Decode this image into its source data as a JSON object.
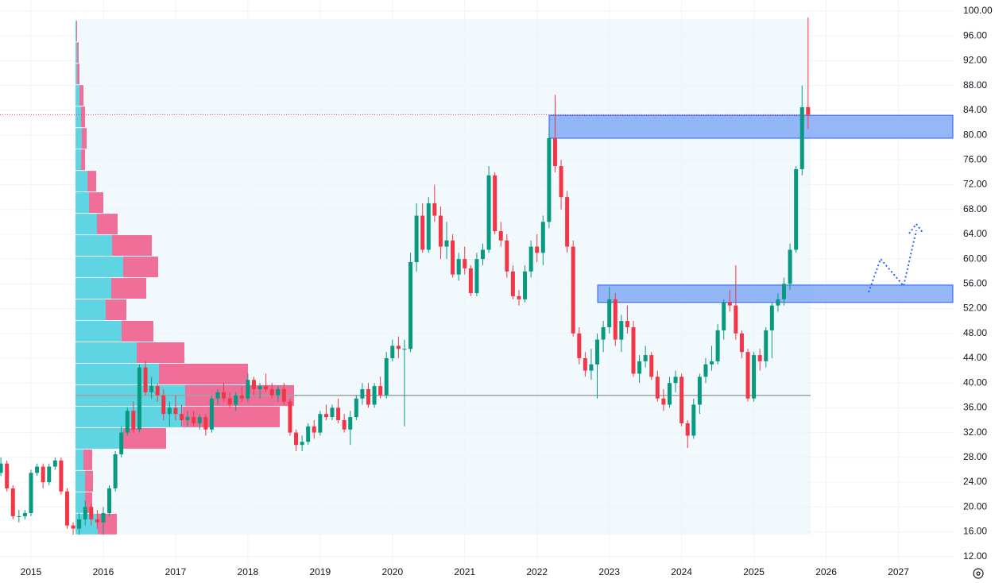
{
  "chart_data": {
    "type": "candlestick",
    "categories": [
      null,
      null,
      null,
      null,
      null,
      "2015",
      null,
      null,
      null,
      null,
      null,
      null,
      null,
      null,
      null,
      null,
      null,
      "2016",
      null,
      null,
      null,
      null,
      null,
      null,
      null,
      null,
      null,
      null,
      null,
      "2017",
      null,
      null,
      null,
      null,
      null,
      null,
      null,
      null,
      null,
      null,
      null,
      "2018",
      null,
      null,
      null,
      null,
      null,
      null,
      null,
      null,
      null,
      null,
      null,
      "2019",
      null,
      null,
      null,
      null,
      null,
      null,
      null,
      null,
      null,
      null,
      null,
      "2020",
      null,
      null,
      null,
      null,
      null,
      null,
      null,
      null,
      null,
      null,
      null,
      "2021",
      null,
      null,
      null,
      null,
      null,
      null,
      null,
      null,
      null,
      null,
      null,
      "2022",
      null,
      null,
      null,
      null,
      null,
      null,
      null,
      null,
      null,
      null,
      null,
      "2023",
      null,
      null,
      null,
      null,
      null,
      null,
      null,
      null,
      null,
      null,
      null,
      "2024",
      null,
      null,
      null,
      null,
      null,
      null,
      null,
      null,
      null,
      null,
      null,
      "2025",
      null,
      null,
      null,
      null,
      null,
      null,
      null,
      null,
      null,
      null,
      null,
      "2026",
      null,
      null,
      null,
      null,
      null,
      null,
      null,
      null,
      null,
      null,
      null,
      "2027",
      null,
      null,
      null,
      null,
      null,
      null,
      null,
      null,
      null
    ],
    "ohlc": [
      [
        25.5,
        28,
        25,
        27
      ],
      [
        27,
        27.5,
        22.5,
        23
      ],
      [
        23,
        23.5,
        18,
        18.5
      ],
      [
        18.5,
        19.5,
        17.5,
        18.5
      ],
      [
        18.5,
        19.5,
        18,
        19
      ],
      [
        19,
        26,
        18.5,
        25.5
      ],
      [
        25.5,
        27,
        25,
        26.5
      ],
      [
        26.5,
        27,
        23,
        24
      ],
      [
        24,
        27,
        23.5,
        26.5
      ],
      [
        26.5,
        28,
        26,
        27.5
      ],
      [
        27.5,
        28,
        22,
        22.5
      ],
      [
        22.5,
        23,
        16.5,
        17
      ],
      [
        17,
        17.5,
        15.5,
        16.5
      ],
      [
        16.5,
        19,
        15.5,
        18
      ],
      [
        18,
        21,
        17,
        20
      ],
      [
        20,
        20.5,
        17,
        18
      ],
      [
        18,
        19.5,
        16.5,
        17.5
      ],
      [
        17.5,
        20,
        15.5,
        19
      ],
      [
        19,
        23.5,
        18.5,
        23
      ],
      [
        23,
        29,
        22.5,
        28.5
      ],
      [
        28.5,
        33,
        28,
        32
      ],
      [
        32,
        36,
        31.5,
        35.5
      ],
      [
        35.5,
        37,
        32,
        32.5
      ],
      [
        32.5,
        43,
        32,
        42.5
      ],
      [
        42.5,
        43.5,
        38,
        38.5
      ],
      [
        38.5,
        41,
        37.5,
        39.5
      ],
      [
        39.5,
        40,
        37,
        38
      ],
      [
        38,
        39,
        34,
        35
      ],
      [
        35,
        37,
        33,
        36
      ],
      [
        36,
        38,
        34,
        35
      ],
      [
        35,
        36.5,
        33,
        34
      ],
      [
        34,
        35.5,
        33,
        34.5
      ],
      [
        34.5,
        35.5,
        33,
        33.5
      ],
      [
        33.5,
        35,
        32.5,
        34.5
      ],
      [
        34.5,
        35,
        31.5,
        32.5
      ],
      [
        32.5,
        38,
        32,
        37.5
      ],
      [
        37.5,
        39,
        36.5,
        38.5
      ],
      [
        38.5,
        40,
        37,
        37.5
      ],
      [
        37.5,
        38.5,
        36,
        36.5
      ],
      [
        36.5,
        38.5,
        35.5,
        38
      ],
      [
        38,
        39.5,
        37,
        37.5
      ],
      [
        37.5,
        41.5,
        37,
        40.5
      ],
      [
        40.5,
        41,
        38,
        39
      ],
      [
        39,
        40,
        37.5,
        39.5
      ],
      [
        39.5,
        41.5,
        38.5,
        39
      ],
      [
        39,
        40,
        37.5,
        38
      ],
      [
        38,
        39.5,
        37,
        39
      ],
      [
        39,
        40,
        36.5,
        37
      ],
      [
        37,
        37.5,
        31.5,
        32
      ],
      [
        32,
        32.5,
        29,
        30
      ],
      [
        30,
        31.5,
        29,
        30.5
      ],
      [
        30.5,
        33.5,
        30,
        33
      ],
      [
        33,
        34,
        31,
        32
      ],
      [
        32,
        35.5,
        31.5,
        35
      ],
      [
        35,
        36.5,
        34,
        34.5
      ],
      [
        34.5,
        36.5,
        34,
        36
      ],
      [
        36,
        37.5,
        33.5,
        34
      ],
      [
        34,
        35,
        32,
        32.5
      ],
      [
        32.5,
        35.5,
        30,
        34.5
      ],
      [
        34.5,
        38,
        34,
        37.5
      ],
      [
        37.5,
        40,
        36.5,
        39
      ],
      [
        39,
        40,
        36,
        36.5
      ],
      [
        36.5,
        40,
        36,
        39.5
      ],
      [
        39.5,
        41,
        37.5,
        38
      ],
      [
        38,
        45,
        37.5,
        44
      ],
      [
        44,
        47,
        43.5,
        46
      ],
      [
        46,
        47.5,
        44,
        45.5
      ],
      [
        45.5,
        47,
        33,
        45.5
      ],
      [
        45.5,
        61,
        45,
        59.5
      ],
      [
        59.5,
        69,
        58,
        67
      ],
      [
        67,
        69,
        61,
        61.5
      ],
      [
        61.5,
        70,
        61,
        69
      ],
      [
        69,
        72,
        66,
        67
      ],
      [
        67,
        68.5,
        60,
        62
      ],
      [
        62,
        66,
        60,
        63
      ],
      [
        63,
        64,
        57,
        57.5
      ],
      [
        57.5,
        61,
        56.5,
        60
      ],
      [
        60,
        62,
        57.5,
        58.5
      ],
      [
        58.5,
        59,
        54,
        54.5
      ],
      [
        54.5,
        61,
        54,
        60
      ],
      [
        60,
        62.5,
        59,
        61.5
      ],
      [
        61.5,
        75,
        61,
        73.5
      ],
      [
        73.5,
        74,
        64,
        64.5
      ],
      [
        64.5,
        66,
        62,
        63
      ],
      [
        63,
        64,
        57,
        58
      ],
      [
        58,
        59,
        53.5,
        54
      ],
      [
        54,
        55,
        52.5,
        53.5
      ],
      [
        53.5,
        59,
        53,
        58
      ],
      [
        58,
        63,
        57,
        62
      ],
      [
        62,
        64,
        59.5,
        61
      ],
      [
        61,
        67,
        59,
        66
      ],
      [
        66,
        81,
        65,
        79.5
      ],
      [
        79.5,
        86.5,
        74,
        75
      ],
      [
        75,
        76,
        68,
        70
      ],
      [
        70,
        71,
        61,
        62
      ],
      [
        62,
        63,
        47.5,
        48
      ],
      [
        48,
        49,
        43,
        44
      ],
      [
        44,
        45,
        41,
        42
      ],
      [
        42,
        45.5,
        40.5,
        43
      ],
      [
        43,
        48,
        37.5,
        47
      ],
      [
        47,
        50,
        45,
        49
      ],
      [
        49,
        55.5,
        48,
        53.5
      ],
      [
        53.5,
        54.5,
        46,
        47
      ],
      [
        47,
        51,
        45,
        50
      ],
      [
        50,
        52.5,
        48,
        49
      ],
      [
        49,
        50,
        41,
        41.5
      ],
      [
        41.5,
        44.5,
        40,
        43.5
      ],
      [
        43.5,
        46,
        42.5,
        44.5
      ],
      [
        44.5,
        45,
        40.5,
        41
      ],
      [
        41,
        42,
        37,
        37.5
      ],
      [
        37.5,
        39,
        35.5,
        36.5
      ],
      [
        36.5,
        41,
        36,
        40
      ],
      [
        40,
        42,
        38.5,
        41
      ],
      [
        41,
        41.5,
        33,
        33.5
      ],
      [
        33.5,
        34,
        29.5,
        31.5
      ],
      [
        31.5,
        37.5,
        31,
        36.5
      ],
      [
        36.5,
        41.5,
        35,
        41
      ],
      [
        41,
        44,
        40,
        43
      ],
      [
        43,
        46,
        42,
        43.5
      ],
      [
        43.5,
        49.5,
        43,
        48.5
      ],
      [
        48.5,
        53.5,
        47,
        53
      ],
      [
        53,
        55,
        51.5,
        52.5
      ],
      [
        52.5,
        59,
        47,
        48
      ],
      [
        48,
        48.5,
        44,
        45
      ],
      [
        45,
        45.5,
        37,
        37.5
      ],
      [
        37.5,
        45,
        37,
        44.5
      ],
      [
        44.5,
        45.5,
        42,
        43.5
      ],
      [
        43.5,
        49,
        42.5,
        48.5
      ],
      [
        48.5,
        53,
        44,
        52.5
      ],
      [
        52.5,
        54.5,
        51.5,
        53.5
      ],
      [
        53.5,
        57,
        52.5,
        56
      ],
      [
        56,
        62.5,
        55,
        61.5
      ],
      [
        61.5,
        75,
        61,
        74.5
      ],
      [
        74.5,
        88,
        73.5,
        84.5
      ],
      [
        84.5,
        99,
        81,
        83.3
      ],
      null,
      null,
      null,
      null,
      null,
      null,
      null,
      null,
      null,
      null,
      null,
      null,
      null,
      null,
      null,
      null,
      null,
      null,
      null,
      null,
      null,
      null,
      null,
      null
    ],
    "up_color": "#089981",
    "down_color": "#f23645",
    "ylim": [
      10.8,
      101.8
    ],
    "yticks": [
      {
        "value": 12,
        "label": "12.00"
      },
      {
        "value": 16,
        "label": "16.00"
      },
      {
        "value": 20,
        "label": "20.00"
      },
      {
        "value": 24,
        "label": "24.00"
      },
      {
        "value": 28,
        "label": "28.00"
      },
      {
        "value": 32,
        "label": "32.00"
      },
      {
        "value": 36,
        "label": "36.00"
      },
      {
        "value": 40,
        "label": "40.00"
      },
      {
        "value": 44,
        "label": "44.00"
      },
      {
        "value": 48,
        "label": "48.00"
      },
      {
        "value": 52,
        "label": "52.00"
      },
      {
        "value": 56,
        "label": "56.00"
      },
      {
        "value": 60,
        "label": "60.00"
      },
      {
        "value": 64,
        "label": "64.00"
      },
      {
        "value": 68,
        "label": "68.00"
      },
      {
        "value": 72,
        "label": "72.00"
      },
      {
        "value": 76,
        "label": "76.00"
      },
      {
        "value": 80,
        "label": "80.00"
      },
      {
        "value": 84,
        "label": "84.00"
      },
      {
        "value": 88,
        "label": "88.00"
      },
      {
        "value": 92,
        "label": "92.00"
      },
      {
        "value": 96,
        "label": "96.00"
      },
      {
        "value": 100,
        "label": "100.00"
      }
    ],
    "grid": true,
    "volume_profile": {
      "low": 15.5,
      "high": 98.5,
      "up_color": "#4fd0e0",
      "down_color": "#ef5f8e",
      "up": [
        28,
        12,
        12,
        10,
        60,
        135,
        138,
        105,
        77,
        58,
        38,
        45,
        60,
        46,
        27,
        17,
        15,
        7,
        8,
        7,
        5,
        2,
        2,
        1
      ],
      "down": [
        24,
        9,
        10,
        11,
        54,
        122,
        137,
        112,
        60,
        40,
        26,
        44,
        44,
        50,
        26,
        18,
        11,
        5,
        6,
        5,
        5,
        3,
        2,
        1
      ],
      "poc": 38
    },
    "zones": [
      {
        "low": 79.5,
        "high": 83.2
      },
      {
        "low": 53,
        "high": 55.8
      }
    ],
    "zone_color": "#82aaf5"
  }
}
